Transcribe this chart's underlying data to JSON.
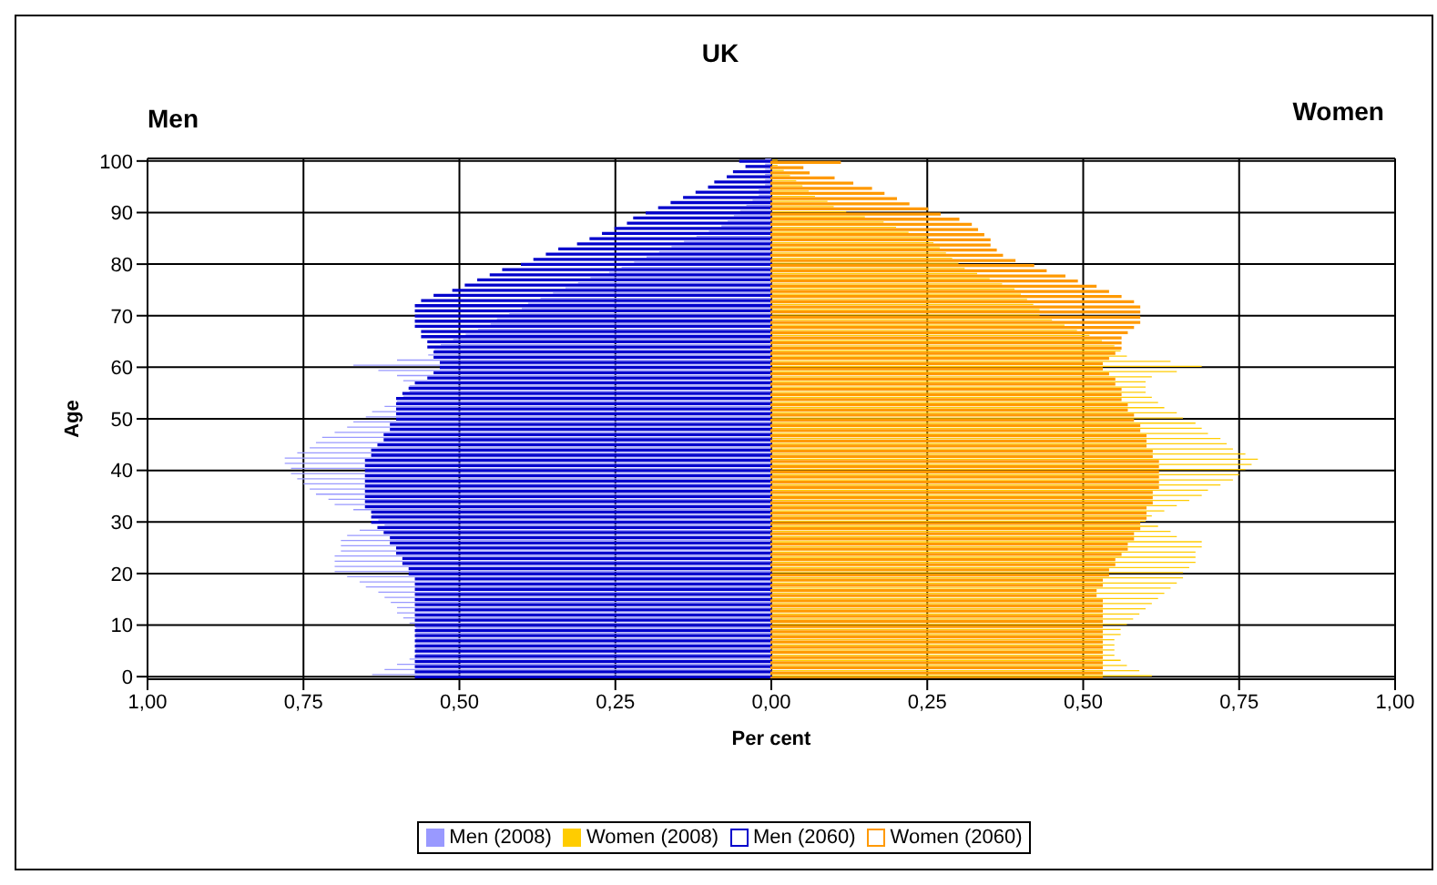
{
  "chart_data": {
    "type": "bar",
    "orientation": "horizontal",
    "title": "UK",
    "xlabel": "Per cent",
    "ylabel": "Age",
    "annotations": [
      "Men",
      "Women"
    ],
    "categories": [
      "100",
      null,
      null,
      null,
      null,
      null,
      null,
      null,
      null,
      null,
      "90",
      null,
      null,
      null,
      null,
      null,
      null,
      null,
      null,
      null,
      "80",
      null,
      null,
      null,
      null,
      null,
      null,
      null,
      null,
      null,
      "70",
      null,
      null,
      null,
      null,
      null,
      null,
      null,
      null,
      null,
      "60",
      null,
      null,
      null,
      null,
      null,
      null,
      null,
      null,
      null,
      "50",
      null,
      null,
      null,
      null,
      null,
      null,
      null,
      null,
      null,
      "40",
      null,
      null,
      null,
      null,
      null,
      null,
      null,
      null,
      null,
      "30",
      null,
      null,
      null,
      null,
      null,
      null,
      null,
      null,
      null,
      "20",
      null,
      null,
      null,
      null,
      null,
      null,
      null,
      null,
      null,
      "10",
      null,
      null,
      null,
      null,
      null,
      null,
      null,
      null,
      null,
      "0"
    ],
    "xlim": [
      -1,
      1
    ],
    "xticks": [
      {
        "value": -1,
        "label": "1,00"
      },
      {
        "value": -0.75,
        "label": "0,75"
      },
      {
        "value": -0.5,
        "label": "0,50"
      },
      {
        "value": -0.25,
        "label": "0,25"
      },
      {
        "value": 0,
        "label": "0,00"
      },
      {
        "value": 0.25,
        "label": "0,25"
      },
      {
        "value": 0.5,
        "label": "0,50"
      },
      {
        "value": 0.75,
        "label": "0,75"
      },
      {
        "value": 1,
        "label": "1,00"
      }
    ],
    "grid": true,
    "legend": "bottom",
    "series": [
      {
        "name": "Men (2008)",
        "color": "#9999ff",
        "values": [
          -0.01,
          -0.01,
          -0.01,
          -0.01,
          -0.01,
          -0.01,
          -0.02,
          -0.02,
          -0.03,
          -0.04,
          -0.05,
          -0.06,
          -0.07,
          -0.08,
          -0.1,
          -0.12,
          -0.14,
          -0.16,
          -0.18,
          -0.2,
          -0.22,
          -0.24,
          -0.26,
          -0.29,
          -0.31,
          -0.33,
          -0.35,
          -0.37,
          -0.39,
          -0.4,
          -0.42,
          -0.44,
          -0.45,
          -0.47,
          -0.49,
          -0.51,
          -0.53,
          -0.54,
          -0.55,
          -0.6,
          -0.67,
          -0.63,
          -0.6,
          -0.59,
          -0.58,
          -0.58,
          -0.59,
          -0.6,
          -0.62,
          -0.64,
          -0.65,
          -0.67,
          -0.68,
          -0.7,
          -0.72,
          -0.73,
          -0.74,
          -0.76,
          -0.78,
          -0.78,
          -0.77,
          -0.77,
          -0.76,
          -0.75,
          -0.74,
          -0.73,
          -0.71,
          -0.7,
          -0.67,
          -0.64,
          -0.63,
          -0.62,
          -0.66,
          -0.68,
          -0.69,
          -0.69,
          -0.69,
          -0.7,
          -0.7,
          -0.7,
          -0.7,
          -0.68,
          -0.66,
          -0.65,
          -0.63,
          -0.62,
          -0.61,
          -0.6,
          -0.6,
          -0.59,
          -0.58,
          -0.57,
          -0.57,
          -0.57,
          -0.57,
          -0.57,
          -0.57,
          -0.58,
          -0.6,
          -0.62,
          -0.64
        ]
      },
      {
        "name": "Women (2008)",
        "color": "#ffcc00",
        "values": [
          0.01,
          0.01,
          0.02,
          0.03,
          0.04,
          0.05,
          0.06,
          0.07,
          0.09,
          0.1,
          0.12,
          0.15,
          0.18,
          0.2,
          0.22,
          0.25,
          0.26,
          0.27,
          0.28,
          0.29,
          0.3,
          0.31,
          0.33,
          0.35,
          0.37,
          0.39,
          0.4,
          0.41,
          0.42,
          0.43,
          0.43,
          0.45,
          0.47,
          0.49,
          0.51,
          0.53,
          0.55,
          0.56,
          0.57,
          0.64,
          0.69,
          0.65,
          0.61,
          0.6,
          0.6,
          0.6,
          0.61,
          0.62,
          0.63,
          0.65,
          0.66,
          0.68,
          0.69,
          0.7,
          0.72,
          0.73,
          0.74,
          0.76,
          0.78,
          0.77,
          0.76,
          0.75,
          0.74,
          0.72,
          0.7,
          0.69,
          0.67,
          0.65,
          0.63,
          0.61,
          0.6,
          0.62,
          0.64,
          0.65,
          0.69,
          0.69,
          0.68,
          0.68,
          0.68,
          0.67,
          0.66,
          0.66,
          0.65,
          0.64,
          0.63,
          0.62,
          0.61,
          0.6,
          0.59,
          0.58,
          0.57,
          0.56,
          0.56,
          0.55,
          0.55,
          0.55,
          0.55,
          0.56,
          0.57,
          0.59,
          0.61
        ]
      },
      {
        "name": "Men (2060)",
        "color": "#0000cc",
        "values": [
          -0.05,
          -0.04,
          -0.06,
          -0.07,
          -0.09,
          -0.1,
          -0.12,
          -0.14,
          -0.16,
          -0.18,
          -0.2,
          -0.22,
          -0.23,
          -0.25,
          -0.27,
          -0.29,
          -0.31,
          -0.34,
          -0.36,
          -0.38,
          -0.4,
          -0.43,
          -0.45,
          -0.47,
          -0.49,
          -0.51,
          -0.54,
          -0.56,
          -0.57,
          -0.57,
          -0.57,
          -0.57,
          -0.57,
          -0.56,
          -0.56,
          -0.55,
          -0.55,
          -0.54,
          -0.54,
          -0.53,
          -0.53,
          -0.54,
          -0.55,
          -0.57,
          -0.58,
          -0.59,
          -0.6,
          -0.6,
          -0.6,
          -0.6,
          -0.6,
          -0.61,
          -0.61,
          -0.62,
          -0.62,
          -0.63,
          -0.64,
          -0.64,
          -0.65,
          -0.65,
          -0.65,
          -0.65,
          -0.65,
          -0.65,
          -0.65,
          -0.65,
          -0.65,
          -0.65,
          -0.64,
          -0.64,
          -0.64,
          -0.63,
          -0.62,
          -0.61,
          -0.61,
          -0.6,
          -0.6,
          -0.59,
          -0.59,
          -0.58,
          -0.58,
          -0.57,
          -0.57,
          -0.57,
          -0.57,
          -0.57,
          -0.57,
          -0.57,
          -0.57,
          -0.57,
          -0.57,
          -0.57,
          -0.57,
          -0.57,
          -0.57,
          -0.57,
          -0.57,
          -0.57,
          -0.57,
          -0.57,
          -0.57
        ]
      },
      {
        "name": "Women (2060)",
        "color": "#ff9900",
        "values": [
          0.11,
          0.05,
          0.06,
          0.1,
          0.13,
          0.16,
          0.18,
          0.2,
          0.22,
          0.25,
          0.27,
          0.3,
          0.32,
          0.33,
          0.34,
          0.35,
          0.35,
          0.36,
          0.37,
          0.39,
          0.42,
          0.44,
          0.47,
          0.49,
          0.52,
          0.54,
          0.56,
          0.58,
          0.59,
          0.59,
          0.59,
          0.59,
          0.58,
          0.57,
          0.56,
          0.56,
          0.56,
          0.55,
          0.54,
          0.53,
          0.53,
          0.54,
          0.55,
          0.55,
          0.56,
          0.56,
          0.56,
          0.57,
          0.57,
          0.58,
          0.58,
          0.59,
          0.59,
          0.6,
          0.6,
          0.6,
          0.61,
          0.61,
          0.62,
          0.62,
          0.62,
          0.62,
          0.62,
          0.62,
          0.61,
          0.61,
          0.61,
          0.6,
          0.6,
          0.6,
          0.59,
          0.59,
          0.58,
          0.58,
          0.57,
          0.57,
          0.56,
          0.55,
          0.55,
          0.54,
          0.54,
          0.53,
          0.53,
          0.52,
          0.52,
          0.53,
          0.53,
          0.53,
          0.53,
          0.53,
          0.53,
          0.53,
          0.53,
          0.53,
          0.53,
          0.53,
          0.53,
          0.53,
          0.53,
          0.53,
          0.53
        ]
      }
    ]
  }
}
